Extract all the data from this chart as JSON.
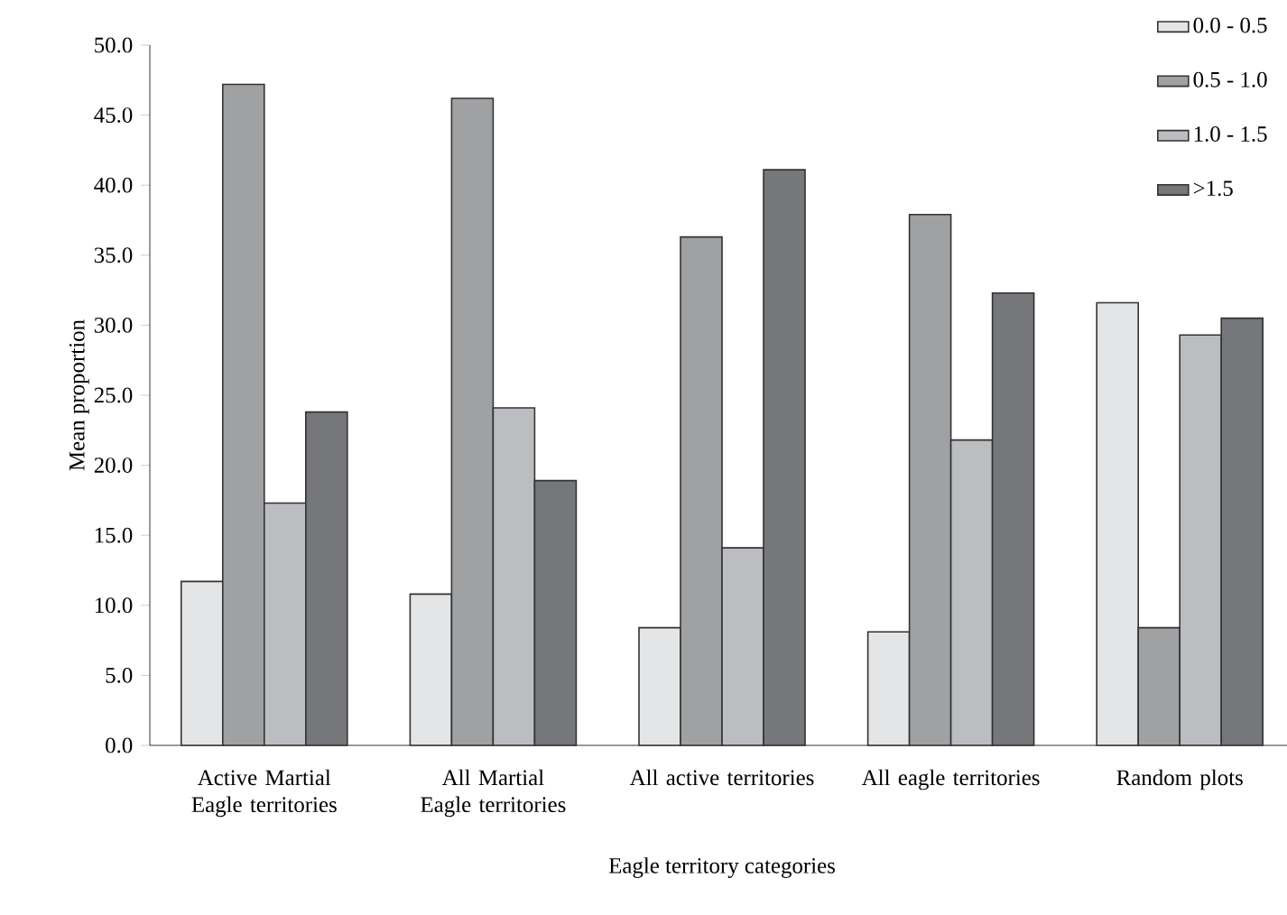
{
  "chart_data": {
    "type": "bar",
    "xlabel": "Eagle territory categories",
    "ylabel": "Mean proportion",
    "categories": [
      "Active Martial Eagle territories",
      "All Martial Eagle territories",
      "All active territories",
      "All eagle territories",
      "Random plots"
    ],
    "series": [
      {
        "name": "0.0 - 0.5",
        "color": "#e4e5e7",
        "values": [
          11.7,
          10.8,
          8.4,
          8.1,
          31.6
        ]
      },
      {
        "name": "0.5 - 1.0",
        "color": "#a0a1a3",
        "values": [
          47.2,
          46.2,
          36.3,
          37.9,
          8.4
        ]
      },
      {
        "name": "1.0 - 1.5",
        "color": "#bcbdc0",
        "values": [
          17.3,
          24.1,
          14.1,
          21.8,
          29.3
        ]
      },
      {
        "name": ">1.5",
        "color": "#76777b",
        "values": [
          23.8,
          18.9,
          41.1,
          32.3,
          30.5
        ]
      }
    ],
    "ylim": [
      0,
      50
    ],
    "yticks": [
      {
        "value": 0,
        "label": "0.0"
      },
      {
        "value": 5,
        "label": "5.0"
      },
      {
        "value": 10,
        "label": "10.0"
      },
      {
        "value": 15,
        "label": "15.0"
      },
      {
        "value": 20,
        "label": "20.0"
      },
      {
        "value": 25,
        "label": "25.0"
      },
      {
        "value": 30,
        "label": "30.0"
      },
      {
        "value": 35,
        "label": "35.0"
      },
      {
        "value": 40,
        "label": "40.0"
      },
      {
        "value": 45,
        "label": "45.0"
      },
      {
        "value": 50,
        "label": "50.0"
      }
    ],
    "legend": "top right",
    "grid": false
  }
}
